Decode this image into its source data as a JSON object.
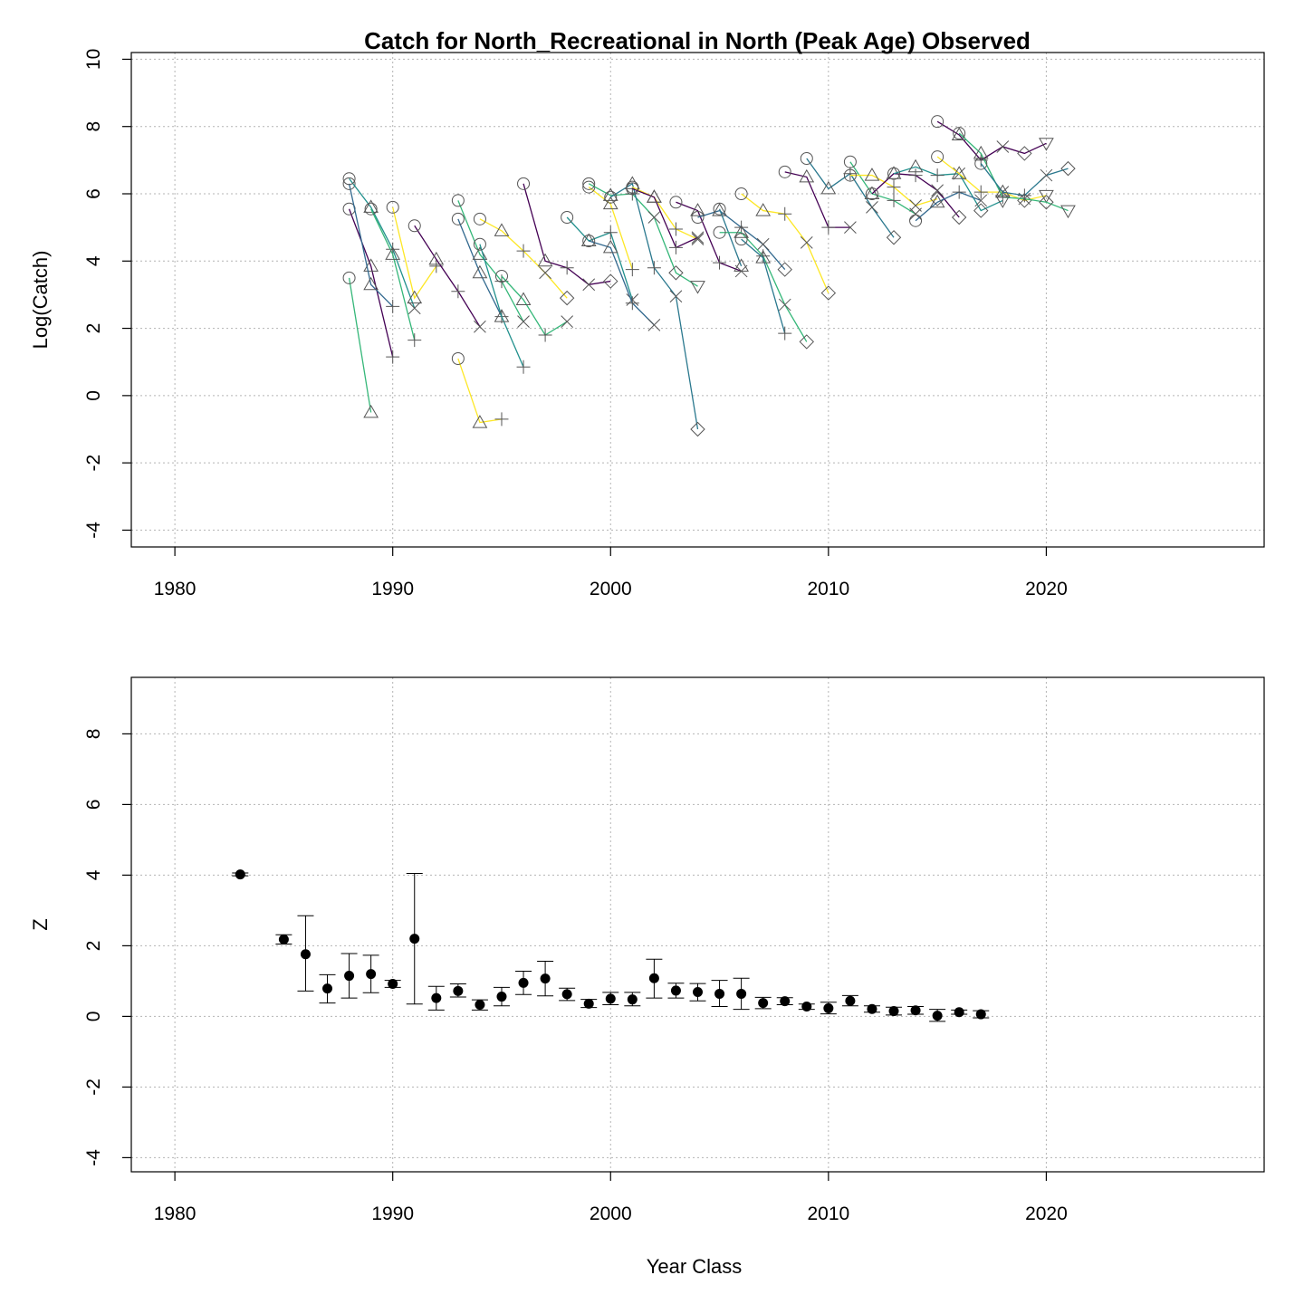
{
  "chart_data": [
    {
      "type": "line",
      "title": "Catch for North_Recreational in North (Peak Age) Observed",
      "xlabel": "",
      "ylabel": "Log(Catch)",
      "xlim": [
        1978,
        2030
      ],
      "ylim": [
        -4.5,
        10.2
      ],
      "xticks": [
        "1980",
        "1990",
        "2000",
        "2010",
        "2020"
      ],
      "yticks": [
        "-4",
        "-2",
        "0",
        "2",
        "4",
        "6",
        "8",
        "10"
      ],
      "grid": true,
      "colors": [
        "#440154",
        "#31688e",
        "#35b779",
        "#fde725",
        "#21908d",
        "#2a788e"
      ],
      "series": [
        {
          "start_year": 1988,
          "values": [
            5.55,
            3.85,
            1.15
          ],
          "color": "#440154"
        },
        {
          "start_year": 1988,
          "values": [
            6.3,
            3.3,
            2.65
          ],
          "color": "#31688e"
        },
        {
          "start_year": 1988,
          "values": [
            6.45,
            5.6,
            4.35,
            2.6
          ],
          "color": "#21908d"
        },
        {
          "start_year": 1988,
          "values": [
            3.5,
            -0.5
          ],
          "color": "#35b779"
        },
        {
          "start_year": 1989,
          "values": [
            5.55,
            4.2,
            1.65
          ],
          "color": "#35b779"
        },
        {
          "start_year": 1990,
          "values": [
            5.6,
            2.9,
            3.85
          ],
          "color": "#fde725"
        },
        {
          "start_year": 1991,
          "values": [
            5.05,
            4.05,
            3.1,
            2.05
          ],
          "color": "#440154"
        },
        {
          "start_year": 1993,
          "values": [
            5.25,
            3.65,
            2.35
          ],
          "color": "#31688e"
        },
        {
          "start_year": 1993,
          "values": [
            5.8,
            4.2,
            3.4,
            2.2
          ],
          "color": "#35b779"
        },
        {
          "start_year": 1993,
          "values": [
            1.1,
            -0.8,
            -0.7
          ],
          "color": "#fde725"
        },
        {
          "start_year": 1994,
          "values": [
            4.5,
            2.35,
            0.85
          ],
          "color": "#21908d"
        },
        {
          "start_year": 1994,
          "values": [
            5.25,
            4.9,
            4.3,
            3.65,
            2.9
          ],
          "color": "#fde725"
        },
        {
          "start_year": 1996,
          "values": [
            6.3,
            4.0,
            3.8,
            3.3,
            3.4
          ],
          "color": "#440154"
        },
        {
          "start_year": 1995,
          "values": [
            3.55,
            2.85,
            1.8,
            2.2
          ],
          "color": "#35b779"
        },
        {
          "start_year": 1998,
          "values": [
            5.3,
            4.6,
            4.85,
            2.85
          ],
          "color": "#21908d"
        },
        {
          "start_year": 1999,
          "values": [
            6.2,
            5.7,
            3.75
          ],
          "color": "#fde725"
        },
        {
          "start_year": 1999,
          "values": [
            6.3,
            5.95,
            6.0,
            5.3,
            3.65,
            3.25
          ],
          "color": "#35b779"
        },
        {
          "start_year": 1999,
          "values": [
            4.6,
            4.4,
            2.75,
            2.1
          ],
          "color": "#31688e"
        },
        {
          "start_year": 2000,
          "values": [
            5.9,
            6.3,
            3.8,
            2.95,
            -1.0
          ],
          "color": "#2a788e"
        },
        {
          "start_year": 2001,
          "values": [
            6.2,
            5.9,
            4.95,
            4.65
          ],
          "color": "#fde725"
        },
        {
          "start_year": 2001,
          "values": [
            6.15,
            5.9,
            4.4,
            4.7
          ],
          "color": "#440154"
        },
        {
          "start_year": 2003,
          "values": [
            5.75,
            5.5,
            3.95,
            3.7
          ],
          "color": "#440154"
        },
        {
          "start_year": 2004,
          "values": [
            5.3,
            5.5,
            5.0,
            4.5,
            3.75
          ],
          "color": "#31688e"
        },
        {
          "start_year": 2005,
          "values": [
            5.55,
            3.85
          ],
          "color": "#2a788e"
        },
        {
          "start_year": 2005,
          "values": [
            4.85,
            4.85,
            4.15,
            2.7,
            1.6
          ],
          "color": "#35b779"
        },
        {
          "start_year": 2006,
          "values": [
            6.0,
            5.5,
            5.4,
            4.55,
            3.05
          ],
          "color": "#fde725"
        },
        {
          "start_year": 2006,
          "values": [
            4.65,
            4.1,
            1.85
          ],
          "color": "#2a788e"
        },
        {
          "start_year": 2008,
          "values": [
            6.65,
            6.5,
            5.0,
            5.0
          ],
          "color": "#440154"
        },
        {
          "start_year": 2009,
          "values": [
            7.05,
            6.15,
            6.6,
            5.6,
            4.7
          ],
          "color": "#2a788e"
        },
        {
          "start_year": 2011,
          "values": [
            6.95,
            6.0,
            5.8,
            5.4
          ],
          "color": "#35b779"
        },
        {
          "start_year": 2011,
          "values": [
            6.55,
            6.55,
            6.2,
            5.65,
            5.85
          ],
          "color": "#fde725"
        },
        {
          "start_year": 2012,
          "values": [
            6.0,
            6.6,
            6.55,
            6.1,
            5.3
          ],
          "color": "#440154"
        },
        {
          "start_year": 2013,
          "values": [
            6.6,
            6.8,
            6.55,
            6.6,
            5.5,
            5.8
          ],
          "color": "#21908d"
        },
        {
          "start_year": 2014,
          "values": [
            5.2,
            5.75,
            6.05,
            5.8
          ],
          "color": "#31688e"
        },
        {
          "start_year": 2015,
          "values": [
            8.15,
            7.75,
            7.0,
            7.4,
            7.2,
            7.5
          ],
          "color": "#440154"
        },
        {
          "start_year": 2015,
          "values": [
            7.1,
            6.6,
            6.05,
            6.05,
            5.8,
            5.95
          ],
          "color": "#fde725"
        },
        {
          "start_year": 2016,
          "values": [
            7.8,
            7.2,
            5.9,
            5.85,
            5.75,
            5.5
          ],
          "color": "#35b779"
        },
        {
          "start_year": 2017,
          "values": [
            6.9,
            6.05,
            5.95,
            6.55,
            6.75
          ],
          "color": "#2a788e"
        }
      ]
    },
    {
      "type": "scatter",
      "title": "",
      "xlabel": "Year Class",
      "ylabel": "Z",
      "xlim": [
        1978,
        2030
      ],
      "ylim": [
        -4.4,
        9.6
      ],
      "xticks": [
        "1980",
        "1990",
        "2000",
        "2010",
        "2020"
      ],
      "yticks": [
        "-4",
        "-2",
        "0",
        "2",
        "4",
        "6",
        "8"
      ],
      "grid": true,
      "points": [
        {
          "x": 1983,
          "y": 4.02,
          "lo": 3.98,
          "hi": 4.06
        },
        {
          "x": 1985,
          "y": 2.18,
          "lo": 2.05,
          "hi": 2.31
        },
        {
          "x": 1986,
          "y": 1.76,
          "lo": 0.72,
          "hi": 2.85
        },
        {
          "x": 1987,
          "y": 0.79,
          "lo": 0.38,
          "hi": 1.18
        },
        {
          "x": 1988,
          "y": 1.15,
          "lo": 0.52,
          "hi": 1.78
        },
        {
          "x": 1989,
          "y": 1.2,
          "lo": 0.67,
          "hi": 1.73
        },
        {
          "x": 1990,
          "y": 0.92,
          "lo": 0.82,
          "hi": 1.02
        },
        {
          "x": 1991,
          "y": 2.2,
          "lo": 0.35,
          "hi": 4.05
        },
        {
          "x": 1992,
          "y": 0.52,
          "lo": 0.18,
          "hi": 0.85
        },
        {
          "x": 1993,
          "y": 0.72,
          "lo": 0.55,
          "hi": 0.92
        },
        {
          "x": 1994,
          "y": 0.33,
          "lo": 0.18,
          "hi": 0.47
        },
        {
          "x": 1995,
          "y": 0.56,
          "lo": 0.3,
          "hi": 0.82
        },
        {
          "x": 1996,
          "y": 0.95,
          "lo": 0.62,
          "hi": 1.28
        },
        {
          "x": 1997,
          "y": 1.07,
          "lo": 0.58,
          "hi": 1.56
        },
        {
          "x": 1998,
          "y": 0.63,
          "lo": 0.45,
          "hi": 0.8
        },
        {
          "x": 1999,
          "y": 0.36,
          "lo": 0.25,
          "hi": 0.48
        },
        {
          "x": 2000,
          "y": 0.5,
          "lo": 0.33,
          "hi": 0.68
        },
        {
          "x": 2001,
          "y": 0.48,
          "lo": 0.3,
          "hi": 0.68
        },
        {
          "x": 2002,
          "y": 1.08,
          "lo": 0.52,
          "hi": 1.62
        },
        {
          "x": 2003,
          "y": 0.73,
          "lo": 0.52,
          "hi": 0.94
        },
        {
          "x": 2004,
          "y": 0.69,
          "lo": 0.44,
          "hi": 0.93
        },
        {
          "x": 2005,
          "y": 0.64,
          "lo": 0.28,
          "hi": 1.02
        },
        {
          "x": 2006,
          "y": 0.64,
          "lo": 0.2,
          "hi": 1.08
        },
        {
          "x": 2007,
          "y": 0.38,
          "lo": 0.22,
          "hi": 0.54
        },
        {
          "x": 2008,
          "y": 0.43,
          "lo": 0.33,
          "hi": 0.53
        },
        {
          "x": 2009,
          "y": 0.28,
          "lo": 0.2,
          "hi": 0.35
        },
        {
          "x": 2010,
          "y": 0.23,
          "lo": 0.07,
          "hi": 0.4
        },
        {
          "x": 2011,
          "y": 0.44,
          "lo": 0.3,
          "hi": 0.59
        },
        {
          "x": 2012,
          "y": 0.21,
          "lo": 0.12,
          "hi": 0.3
        },
        {
          "x": 2013,
          "y": 0.15,
          "lo": 0.04,
          "hi": 0.26
        },
        {
          "x": 2014,
          "y": 0.17,
          "lo": 0.06,
          "hi": 0.28
        },
        {
          "x": 2015,
          "y": 0.02,
          "lo": -0.14,
          "hi": 0.2
        },
        {
          "x": 2016,
          "y": 0.12,
          "lo": 0.06,
          "hi": 0.18
        },
        {
          "x": 2017,
          "y": 0.06,
          "lo": -0.04,
          "hi": 0.16
        }
      ]
    }
  ]
}
